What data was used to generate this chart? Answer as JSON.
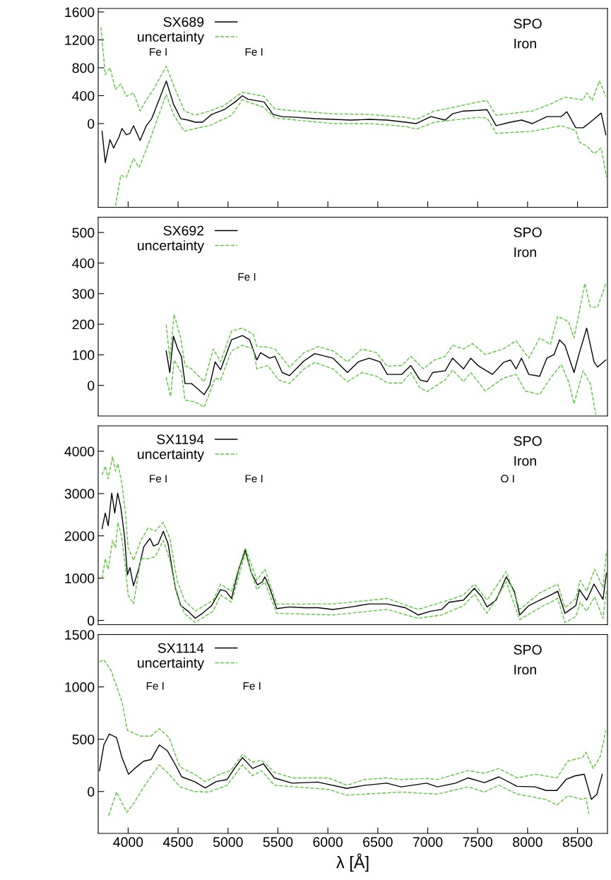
{
  "chart_data": [
    {
      "type": "line",
      "xlim": [
        3700,
        8800
      ],
      "xticks": [
        4000,
        4500,
        5000,
        5500,
        6000,
        6500,
        7000,
        7500,
        8000,
        8500
      ],
      "ylim": [
        -1200,
        1650
      ],
      "yticks": [
        0,
        400,
        800,
        1200,
        1600
      ],
      "tick_labels": "y",
      "grid": false,
      "legend": "top left",
      "annotations": [
        "Fe I",
        "Fe I",
        "SPO",
        "Iron"
      ],
      "series": [
        {
          "name": "SX689",
          "color": "#000000",
          "line_style": "solid",
          "x": [
            3739,
            3771,
            3818,
            3855,
            3909,
            3938,
            3982,
            4018,
            4054,
            4120,
            4182,
            4236,
            4309,
            4382,
            4454,
            4527,
            4600,
            4672,
            4745,
            4835,
            4962,
            5071,
            5144,
            5198,
            5361,
            5452,
            5543,
            5688,
            5869,
            6051,
            6232,
            6414,
            6595,
            6777,
            6886,
            7031,
            7176,
            7249,
            7358,
            7503,
            7594,
            7685,
            7830,
            7939,
            8048,
            8193,
            8338,
            8393,
            8483,
            8556,
            8628,
            8737,
            8784
          ],
          "values": [
            -110,
            -560,
            -230,
            -350,
            -190,
            -70,
            -160,
            -140,
            -30,
            -240,
            -30,
            70,
            340,
            610,
            280,
            70,
            50,
            20,
            20,
            130,
            200,
            310,
            400,
            350,
            310,
            130,
            100,
            90,
            70,
            60,
            50,
            60,
            50,
            20,
            0,
            100,
            50,
            140,
            180,
            190,
            200,
            -30,
            20,
            50,
            0,
            100,
            100,
            170,
            -60,
            -60,
            20,
            150,
            -160
          ]
        },
        {
          "name": "uncertainty",
          "color": "#55cc33",
          "line_style": "dashed",
          "x": [
            3728,
            3771,
            3818,
            3873,
            3927,
            3982,
            4054,
            4120,
            4182,
            4254,
            4382,
            4472,
            4563,
            4672,
            4817,
            4962,
            5144,
            5361,
            5470,
            5688,
            6051,
            6414,
            6777,
            6886,
            7067,
            7249,
            7503,
            7594,
            7685,
            7867,
            8048,
            8229,
            8374,
            8501,
            8556,
            8592,
            8646,
            8719,
            8784
          ],
          "values": [
            1380,
            700,
            800,
            490,
            570,
            390,
            440,
            180,
            340,
            490,
            820,
            490,
            180,
            120,
            180,
            260,
            450,
            390,
            210,
            180,
            140,
            130,
            90,
            60,
            180,
            230,
            310,
            330,
            120,
            150,
            180,
            280,
            380,
            350,
            340,
            440,
            330,
            610,
            390
          ]
        },
        {
          "color": "#55cc33",
          "line_style": "dashed",
          "x": [
            3873,
            3927,
            3982,
            4054,
            4109,
            4182,
            4254,
            4382,
            4454,
            4563,
            4708,
            4817,
            5035,
            5144,
            5361,
            5470,
            6051,
            6414,
            6777,
            6886,
            7067,
            7249,
            7503,
            7594,
            7685,
            8048,
            8338,
            8483,
            8519,
            8592,
            8665,
            8737,
            8791
          ],
          "values": [
            -1180,
            -740,
            -770,
            -500,
            -630,
            -370,
            -90,
            420,
            130,
            -110,
            -60,
            -30,
            120,
            340,
            230,
            80,
            0,
            0,
            -40,
            -80,
            20,
            50,
            90,
            80,
            -140,
            -110,
            -30,
            -100,
            -270,
            -320,
            -430,
            -350,
            -770
          ]
        }
      ]
    },
    {
      "type": "line",
      "xlim": [
        3700,
        8800
      ],
      "ylim": [
        -100,
        550
      ],
      "yticks": [
        0,
        100,
        200,
        300,
        400,
        500
      ],
      "tick_labels": "y",
      "grid": false,
      "legend": "top left",
      "annotations": [
        "Fe I",
        "SPO",
        "Iron"
      ],
      "series": [
        {
          "name": "SX692",
          "color": "#000000",
          "line_style": "solid",
          "x": [
            4381,
            4417,
            4454,
            4497,
            4533,
            4570,
            4635,
            4672,
            4762,
            4817,
            4871,
            4926,
            5035,
            5144,
            5217,
            5289,
            5326,
            5416,
            5470,
            5543,
            5616,
            5761,
            5869,
            6051,
            6196,
            6305,
            6414,
            6523,
            6595,
            6740,
            6831,
            6922,
            6995,
            7049,
            7176,
            7249,
            7358,
            7431,
            7503,
            7648,
            7758,
            7830,
            7885,
            7939,
            8012,
            8121,
            8193,
            8266,
            8320,
            8374,
            8465,
            8519,
            8592,
            8665,
            8701,
            8784
          ],
          "values": [
            113,
            42,
            161,
            119,
            95,
            6,
            6,
            -4,
            -30,
            0,
            77,
            51,
            149,
            163,
            149,
            83,
            107,
            89,
            95,
            42,
            32,
            80,
            104,
            89,
            42,
            77,
            89,
            77,
            36,
            36,
            65,
            18,
            12,
            42,
            48,
            89,
            54,
            89,
            65,
            36,
            75,
            83,
            54,
            89,
            36,
            30,
            89,
            101,
            149,
            131,
            42,
            107,
            187,
            77,
            60,
            83
          ]
        },
        {
          "name": "uncertainty",
          "color": "#55cc33",
          "line_style": "dashed",
          "x": [
            4381,
            4417,
            4461,
            4526,
            4570,
            4635,
            4672,
            4762,
            4853,
            4926,
            5035,
            5144,
            5253,
            5289,
            5398,
            5470,
            5616,
            5761,
            5906,
            6051,
            6196,
            6341,
            6487,
            6595,
            6740,
            6831,
            6958,
            7067,
            7176,
            7249,
            7358,
            7448,
            7576,
            7758,
            7885,
            8012,
            8121,
            8229,
            8302,
            8411,
            8465,
            8574,
            8628,
            8701,
            8784
          ],
          "values": [
            199,
            89,
            232,
            155,
            65,
            54,
            42,
            12,
            119,
            77,
            178,
            187,
            167,
            127,
            125,
            119,
            60,
            107,
            127,
            113,
            77,
            119,
            107,
            63,
            65,
            95,
            54,
            83,
            95,
            131,
            119,
            137,
            101,
            119,
            146,
            89,
            155,
            134,
            226,
            208,
            155,
            333,
            256,
            256,
            333
          ]
        },
        {
          "color": "#55cc33",
          "line_style": "dashed",
          "x": [
            4381,
            4425,
            4461,
            4533,
            4570,
            4672,
            4762,
            4871,
            4926,
            5035,
            5144,
            5253,
            5289,
            5398,
            5507,
            5616,
            5761,
            5869,
            6051,
            6196,
            6341,
            6487,
            6595,
            6740,
            6831,
            6922,
            6995,
            7176,
            7249,
            7358,
            7431,
            7576,
            7758,
            7885,
            7976,
            8121,
            8229,
            8338,
            8411,
            8465,
            8556,
            8628,
            8683
          ],
          "values": [
            27,
            -36,
            83,
            42,
            -48,
            -54,
            -71,
            24,
            18,
            113,
            131,
            119,
            54,
            65,
            18,
            6,
            54,
            75,
            54,
            12,
            42,
            30,
            8,
            8,
            42,
            -8,
            -20,
            18,
            51,
            12,
            42,
            -18,
            24,
            36,
            -18,
            -30,
            24,
            68,
            12,
            -60,
            48,
            6,
            -95
          ]
        }
      ]
    },
    {
      "type": "line",
      "xlim": [
        3700,
        8800
      ],
      "ylim": [
        -100,
        4600
      ],
      "yticks": [
        0,
        1000,
        2000,
        3000,
        4000
      ],
      "tick_labels": "y",
      "grid": false,
      "legend": "top left",
      "annotations": [
        "Fe I",
        "Fe I",
        "O I",
        "SPO",
        "Iron"
      ],
      "series": [
        {
          "name": "SX1194",
          "color": "#000000",
          "line_style": "solid",
          "x": [
            3739,
            3771,
            3800,
            3836,
            3866,
            3895,
            3927,
            3964,
            3993,
            4018,
            4054,
            4109,
            4156,
            4218,
            4254,
            4301,
            4352,
            4400,
            4472,
            4527,
            4600,
            4672,
            4745,
            4835,
            4926,
            4980,
            5035,
            5108,
            5173,
            5234,
            5296,
            5343,
            5369,
            5416,
            5488,
            5616,
            5761,
            5906,
            6051,
            6232,
            6414,
            6595,
            6777,
            6904,
            7031,
            7140,
            7213,
            7358,
            7467,
            7540,
            7594,
            7685,
            7787,
            7867,
            7921,
            8012,
            8121,
            8229,
            8302,
            8374,
            8429,
            8483,
            8519,
            8592,
            8665,
            8755,
            8790
          ],
          "values": [
            2170,
            2540,
            2240,
            3010,
            2540,
            3010,
            2670,
            1980,
            1080,
            1250,
            820,
            1250,
            1740,
            1940,
            1760,
            1810,
            2110,
            1810,
            780,
            350,
            220,
            50,
            170,
            350,
            730,
            690,
            520,
            1210,
            1660,
            1120,
            840,
            910,
            1030,
            780,
            280,
            320,
            300,
            300,
            260,
            320,
            390,
            390,
            300,
            130,
            220,
            260,
            430,
            480,
            760,
            560,
            320,
            480,
            1030,
            690,
            130,
            350,
            480,
            600,
            690,
            170,
            260,
            350,
            730,
            480,
            860,
            500,
            1120
          ]
        },
        {
          "name": "uncertainty",
          "color": "#55cc33",
          "line_style": "dashed",
          "x": [
            3739,
            3771,
            3800,
            3844,
            3873,
            3898,
            3935,
            3971,
            4000,
            4054,
            4127,
            4200,
            4272,
            4352,
            4418,
            4490,
            4563,
            4672,
            4853,
            4926,
            5035,
            5173,
            5289,
            5369,
            5488,
            6051,
            6595,
            6904,
            7140,
            7358,
            7467,
            7594,
            7787,
            7921,
            8121,
            8302,
            8374,
            8483,
            8526,
            8592,
            8672,
            8755,
            8790
          ],
          "values": [
            3440,
            3650,
            3350,
            3870,
            3530,
            3700,
            3270,
            2580,
            1720,
            1420,
            1890,
            2190,
            2110,
            2320,
            1940,
            950,
            480,
            220,
            480,
            860,
            690,
            1720,
            950,
            1210,
            390,
            390,
            520,
            260,
            430,
            600,
            860,
            480,
            1160,
            260,
            650,
            860,
            300,
            520,
            950,
            690,
            1210,
            780,
            1640
          ]
        },
        {
          "color": "#55cc33",
          "line_style": "dashed",
          "x": [
            3739,
            3771,
            3800,
            3844,
            3873,
            3898,
            3935,
            3971,
            4000,
            4054,
            4127,
            4200,
            4272,
            4352,
            4418,
            4490,
            4563,
            4672,
            4853,
            4926,
            5035,
            5173,
            5289,
            5369,
            5488,
            6051,
            6595,
            6904,
            7140,
            7358,
            7467,
            7594,
            7787,
            7921,
            8121,
            8302,
            8374,
            8483,
            8526,
            8592,
            8672,
            8755,
            8790
          ],
          "values": [
            990,
            1460,
            1210,
            1890,
            1720,
            2320,
            1980,
            1290,
            600,
            390,
            1460,
            1460,
            1510,
            1890,
            1420,
            600,
            170,
            -50,
            220,
            600,
            430,
            1590,
            730,
            910,
            170,
            130,
            260,
            50,
            130,
            350,
            620,
            170,
            910,
            20,
            300,
            520,
            -50,
            90,
            430,
            220,
            560,
            50,
            690
          ]
        }
      ]
    },
    {
      "type": "line",
      "xlim": [
        3700,
        8800
      ],
      "xticks": [
        4000,
        4500,
        5000,
        5500,
        6000,
        6500,
        7000,
        7500,
        8000,
        8500
      ],
      "ylim": [
        -400,
        1500
      ],
      "yticks": [
        0,
        500,
        1000,
        1500
      ],
      "xlabel": "λ [Å]",
      "grid": false,
      "legend": "top left",
      "annotations": [
        "Fe I",
        "Fe I",
        "SPO",
        "Iron"
      ],
      "series": [
        {
          "name": "SX1114",
          "color": "#000000",
          "line_style": "solid",
          "x": [
            3713,
            3757,
            3811,
            3884,
            3938,
            4004,
            4065,
            4156,
            4229,
            4312,
            4392,
            4465,
            4537,
            4664,
            4773,
            4882,
            4991,
            5064,
            5144,
            5246,
            5354,
            5463,
            5644,
            5899,
            6189,
            6371,
            6589,
            6733,
            6988,
            7097,
            7278,
            7405,
            7568,
            7713,
            7895,
            8076,
            8185,
            8294,
            8385,
            8476,
            8567,
            8639,
            8694,
            8748
          ],
          "values": [
            200,
            445,
            550,
            515,
            325,
            165,
            220,
            290,
            305,
            445,
            390,
            270,
            140,
            95,
            35,
            95,
            115,
            220,
            325,
            220,
            265,
            130,
            80,
            90,
            30,
            60,
            80,
            45,
            80,
            45,
            80,
            130,
            85,
            140,
            50,
            45,
            10,
            10,
            115,
            150,
            165,
            -75,
            -25,
            165
          ]
        },
        {
          "name": "uncertainty",
          "color": "#55cc33",
          "line_style": "dashed",
          "x": [
            3713,
            3757,
            3829,
            3938,
            3993,
            4120,
            4229,
            4312,
            4410,
            4519,
            4664,
            4773,
            4918,
            5028,
            5144,
            5246,
            5336,
            5463,
            5644,
            6007,
            6189,
            6371,
            6589,
            6733,
            6988,
            7097,
            7405,
            7568,
            7713,
            7895,
            8076,
            8294,
            8403,
            8548,
            8585,
            8657,
            8730,
            8784
          ],
          "values": [
            1240,
            1260,
            1155,
            860,
            585,
            530,
            530,
            600,
            515,
            235,
            165,
            95,
            165,
            200,
            355,
            280,
            300,
            185,
            130,
            130,
            60,
            115,
            130,
            115,
            125,
            115,
            200,
            175,
            220,
            130,
            165,
            130,
            290,
            325,
            375,
            220,
            340,
            585
          ]
        },
        {
          "color": "#55cc33",
          "line_style": "dashed",
          "x": [
            3804,
            3884,
            3986,
            4058,
            4167,
            4312,
            4410,
            4519,
            4664,
            4809,
            4991,
            5144,
            5246,
            5336,
            5463,
            6007,
            6189,
            6733,
            7097,
            7405,
            7568,
            7713,
            7895,
            8185,
            8294,
            8403,
            8548,
            8585,
            8614
          ],
          "values": [
            -230,
            -5,
            -200,
            -110,
            60,
            255,
            165,
            45,
            0,
            -5,
            60,
            255,
            150,
            200,
            60,
            20,
            -35,
            -5,
            -25,
            45,
            -5,
            60,
            -25,
            -75,
            -130,
            -40,
            -75,
            -60,
            -215
          ]
        }
      ]
    }
  ]
}
